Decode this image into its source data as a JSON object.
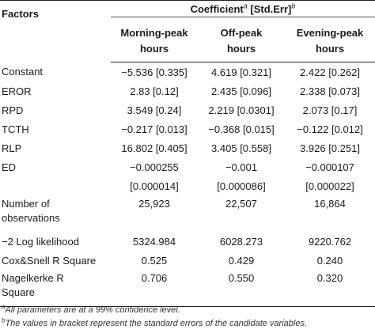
{
  "header": {
    "factors_label": "Factors",
    "coef_label": "Coefficient",
    "coef_sup": "a",
    "coef_stderr": " [Std.Err]",
    "coef_sup2": "b",
    "col1": "Morning-peak hours",
    "col2": "Off-peak hours",
    "col3": "Evening-peak hours"
  },
  "rows": [
    {
      "factor": "Constant",
      "v1": "−5.536 [0.335]",
      "v2": "4.619 [0.321]",
      "v3": "2.422 [0.262]"
    },
    {
      "factor": "EROR",
      "v1": "2.83 [0.12]",
      "v2": "2.435 [0.096]",
      "v3": "2.338 [0.073]"
    },
    {
      "factor": "RPD",
      "v1": "3.549 [0.24]",
      "v2": "2.219 [0.0301]",
      "v3": "2.073 [0.17]"
    },
    {
      "factor": "TCTH",
      "v1": "−0.217 [0.013]",
      "v2": "−0.368 [0.015]",
      "v3": "−0.122 [0.012]"
    },
    {
      "factor": "RLP",
      "v1": "16.802 [0.405]",
      "v2": "3.405 [0.558]",
      "v3": "3.926 [0.251]"
    },
    {
      "factor": "ED",
      "v1": "−0.000255",
      "v2": "−0.001",
      "v3": "−0.000107"
    },
    {
      "factor": "",
      "v1": "[0.000014]",
      "v2": "[0.000086]",
      "v3": "[0.000022]"
    },
    {
      "factor": "Number of observations",
      "v1": "25,923",
      "v2": "22,507",
      "v3": "16,864"
    },
    {
      "factor": "−2 Log likelihood",
      "v1": "5324.984",
      "v2": "6028.273",
      "v3": "9220.762"
    },
    {
      "factor": "Cox&Snell R Square",
      "v1": "0.525",
      "v2": "0.429",
      "v3": "0.240"
    },
    {
      "factor": "Nagelkerke R Square",
      "v1": "0.706",
      "v2": "0.550",
      "v3": "0.320"
    }
  ],
  "notes": {
    "a_sup": "a",
    "a_text": "All parameters are at a 99% confidence level.",
    "b_sup": "b",
    "b_text": "The values in bracket represent the standard errors of the candidate variables."
  }
}
